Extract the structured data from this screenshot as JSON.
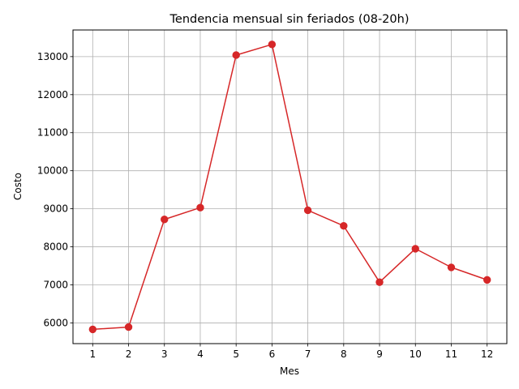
{
  "chart_data": {
    "type": "line",
    "title": "Tendencia mensual sin feriados (08-20h)",
    "xlabel": "Mes",
    "ylabel": "Costo",
    "x": [
      1,
      2,
      3,
      4,
      5,
      6,
      7,
      8,
      9,
      10,
      11,
      12
    ],
    "series": [
      {
        "values": [
          5830,
          5890,
          8720,
          9030,
          13040,
          13320,
          8960,
          8550,
          7070,
          7950,
          7460,
          7130
        ],
        "color": "#d62728",
        "marker": "circle"
      }
    ],
    "x_ticks": [
      "1",
      "2",
      "3",
      "4",
      "5",
      "6",
      "7",
      "8",
      "9",
      "10",
      "11",
      "12"
    ],
    "y_ticks": [
      6000,
      7000,
      8000,
      9000,
      10000,
      11000,
      12000,
      13000
    ],
    "xlim": [
      0.45,
      12.55
    ],
    "ylim": [
      5455,
      13700
    ],
    "grid": true
  }
}
